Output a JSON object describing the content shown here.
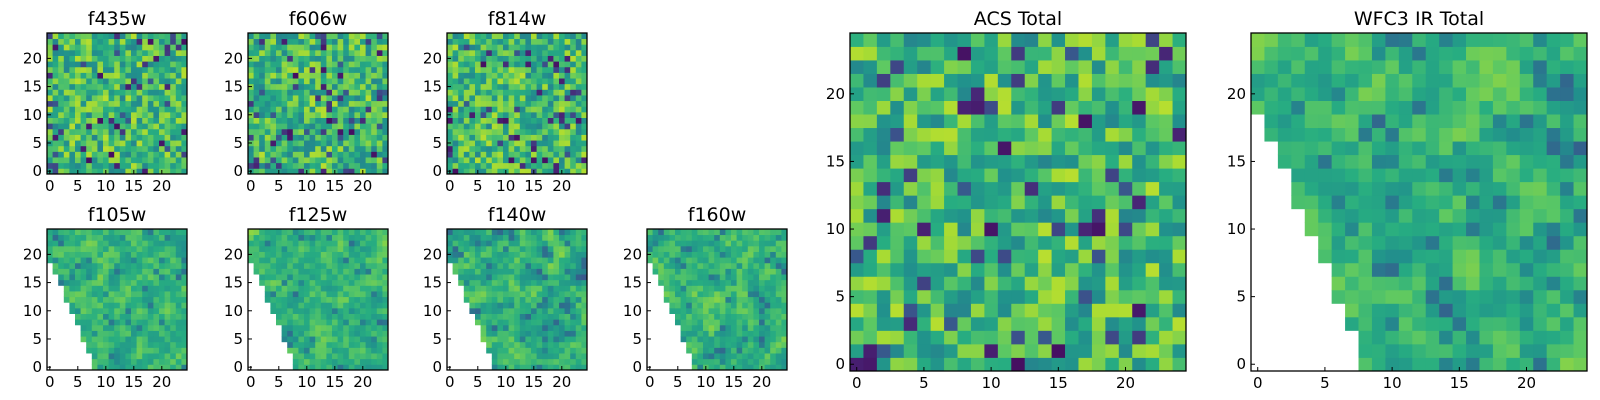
{
  "chart_data": {
    "type": "heatmap",
    "colormap": "viridis",
    "vmin": 0,
    "vmax": 1,
    "panels": [
      {
        "title": "f435w",
        "kind": "small",
        "mask": "none",
        "seed": 11,
        "smooth": 0.0,
        "xticks": [
          0,
          5,
          10,
          15,
          20
        ],
        "yticks": [
          0,
          5,
          10,
          15,
          20
        ]
      },
      {
        "title": "f606w",
        "kind": "small",
        "mask": "none",
        "seed": 23,
        "smooth": 0.0,
        "xticks": [
          0,
          5,
          10,
          15,
          20
        ],
        "yticks": [
          0,
          5,
          10,
          15,
          20
        ]
      },
      {
        "title": "f814w",
        "kind": "small",
        "mask": "none",
        "seed": 37,
        "smooth": 0.0,
        "xticks": [
          0,
          5,
          10,
          15,
          20
        ],
        "yticks": [
          0,
          5,
          10,
          15,
          20
        ]
      },
      {
        "title": "f105w",
        "kind": "small",
        "mask": "wedge",
        "seed": 41,
        "smooth": 0.6,
        "xticks": [
          0,
          5,
          10,
          15,
          20
        ],
        "yticks": [
          0,
          5,
          10,
          15,
          20
        ]
      },
      {
        "title": "f125w",
        "kind": "small",
        "mask": "wedge",
        "seed": 53,
        "smooth": 0.6,
        "xticks": [
          0,
          5,
          10,
          15,
          20
        ],
        "yticks": [
          0,
          5,
          10,
          15,
          20
        ]
      },
      {
        "title": "f140w",
        "kind": "small",
        "mask": "wedge",
        "seed": 67,
        "smooth": 0.6,
        "xticks": [
          0,
          5,
          10,
          15,
          20
        ],
        "yticks": [
          0,
          5,
          10,
          15,
          20
        ]
      },
      {
        "title": "f160w",
        "kind": "small",
        "mask": "wedge",
        "seed": 79,
        "smooth": 0.6,
        "xticks": [
          0,
          5,
          10,
          15,
          20
        ],
        "yticks": [
          0,
          5,
          10,
          15,
          20
        ]
      },
      {
        "title": "ACS Total",
        "kind": "large",
        "mask": "none",
        "seed": 97,
        "smooth": 0.0,
        "xticks": [
          0,
          5,
          10,
          15,
          20
        ],
        "yticks": [
          0,
          5,
          10,
          15,
          20
        ]
      },
      {
        "title": "WFC3 IR Total",
        "kind": "large",
        "mask": "wedge",
        "seed": 131,
        "smooth": 0.6,
        "xticks": [
          0,
          5,
          10,
          15,
          20
        ],
        "yticks": [
          0,
          5,
          10,
          15,
          20
        ]
      }
    ],
    "grid_size": 25,
    "xlim": [
      -0.5,
      24.5
    ],
    "ylim": [
      -0.5,
      24.5
    ],
    "grid": false
  }
}
